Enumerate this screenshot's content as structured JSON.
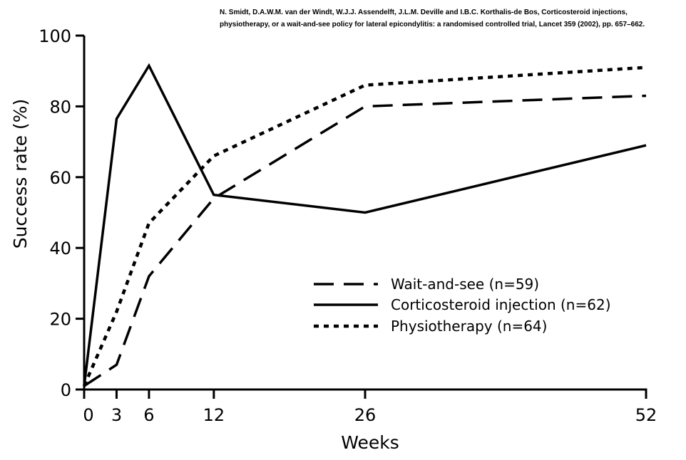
{
  "citation": {
    "line1": "N. Smidt, D.A.W.M. van der Windt, W.J.J. Assendelft, J.L.M. Deville and I.B.C. Korthalis-de Bos, Corticosteroid injections,",
    "line2": "physiotherapy, or a wait-and-see policy for lateral epicondylitis: a randomised controlled trial, Lancet 359 (2002), pp. 657–662."
  },
  "chart_data": {
    "type": "line",
    "title": "",
    "xlabel": "Weeks",
    "ylabel": "Success rate (%)",
    "xlim": [
      0,
      52
    ],
    "ylim": [
      0,
      100
    ],
    "x_ticks": [
      0,
      3,
      6,
      12,
      26,
      52
    ],
    "y_ticks": [
      0,
      20,
      40,
      60,
      80,
      100
    ],
    "grid": false,
    "legend_position": "lower-right",
    "series": [
      {
        "name": "Wait-and-see (n=59)",
        "style": "dashed",
        "color": "#000000",
        "points": [
          [
            0,
            1
          ],
          [
            3,
            7
          ],
          [
            6,
            32
          ],
          [
            12,
            54
          ],
          [
            26,
            80
          ],
          [
            52,
            83
          ]
        ]
      },
      {
        "name": "Corticosteroid injection (n=62)",
        "style": "solid",
        "color": "#000000",
        "points": [
          [
            0,
            1
          ],
          [
            3,
            76.5
          ],
          [
            6,
            91.5
          ],
          [
            12,
            55
          ],
          [
            26,
            50
          ],
          [
            52,
            69
          ]
        ]
      },
      {
        "name": "Physiotherapy (n=64)",
        "style": "dotted",
        "color": "#000000",
        "points": [
          [
            0,
            1
          ],
          [
            3,
            22
          ],
          [
            6,
            47
          ],
          [
            12,
            66
          ],
          [
            26,
            86
          ],
          [
            52,
            91
          ]
        ]
      }
    ]
  }
}
